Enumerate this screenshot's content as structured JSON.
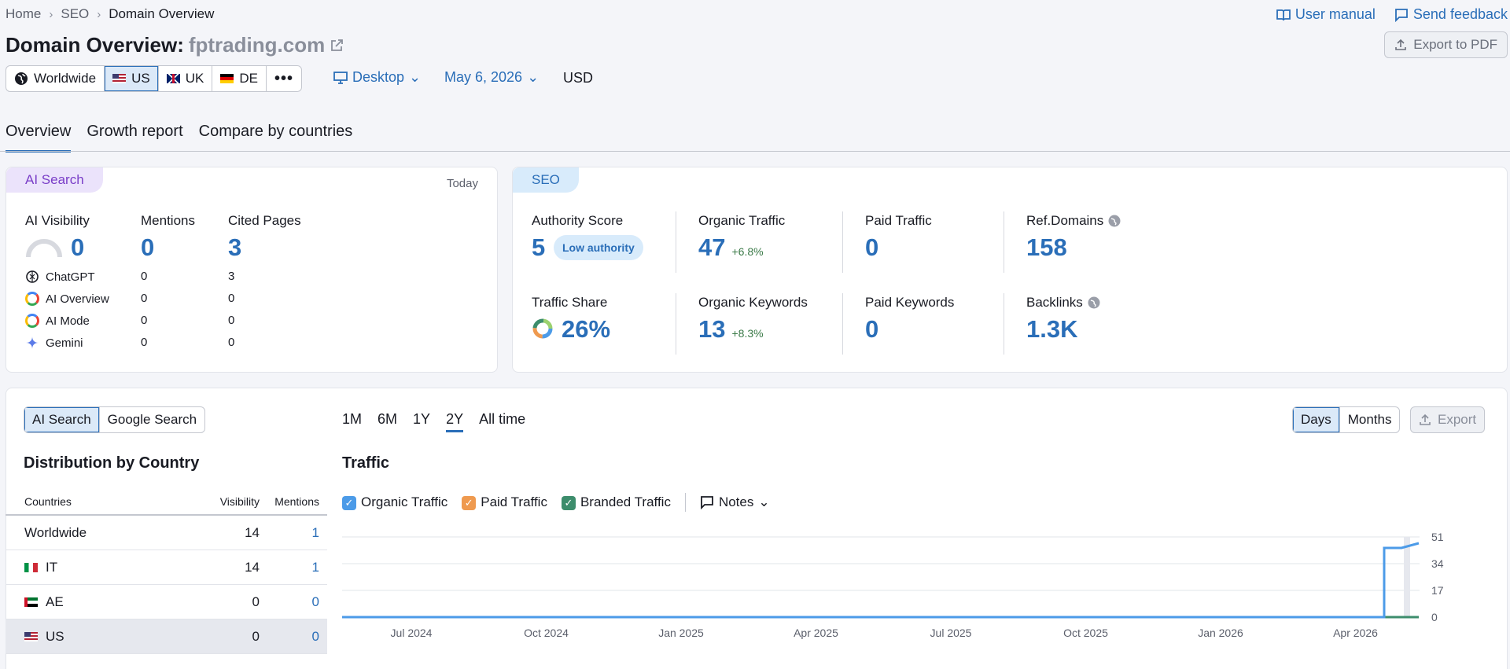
{
  "breadcrumb": [
    "Home",
    "SEO",
    "Domain Overview"
  ],
  "top_links": {
    "manual": "User manual",
    "feedback": "Send feedback"
  },
  "title": {
    "prefix": "Domain Overview:",
    "domain": "fptrading.com"
  },
  "export_pdf": "Export to PDF",
  "databases": [
    {
      "label": "Worldwide",
      "flag": "globe-icon"
    },
    {
      "label": "US",
      "flag": "flag-us"
    },
    {
      "label": "UK",
      "flag": "flag-uk"
    },
    {
      "label": "DE",
      "flag": "flag-de"
    }
  ],
  "device": "Desktop",
  "date": "May 6, 2026",
  "currency": "USD",
  "tabs": [
    "Overview",
    "Growth report",
    "Compare by countries"
  ],
  "ai_card": {
    "pill": "AI Search",
    "period": "Today",
    "visibility_label": "AI Visibility",
    "visibility": "0",
    "mentions_label": "Mentions",
    "mentions": "0",
    "cited_label": "Cited Pages",
    "cited": "3",
    "rows": [
      {
        "name": "ChatGPT",
        "mentions": "0",
        "cited": "3"
      },
      {
        "name": "AI Overview",
        "mentions": "0",
        "cited": "0"
      },
      {
        "name": "AI Mode",
        "mentions": "0",
        "cited": "0"
      },
      {
        "name": "Gemini",
        "mentions": "0",
        "cited": "0"
      }
    ]
  },
  "seo_card": {
    "pill": "SEO",
    "authority_label": "Authority Score",
    "authority": "5",
    "authority_badge": "Low authority",
    "organic_label": "Organic Traffic",
    "organic": "47",
    "organic_delta": "+6.8%",
    "paid_label": "Paid Traffic",
    "paid": "0",
    "ref_label": "Ref.Domains",
    "ref": "158",
    "share_label": "Traffic Share",
    "share": "26%",
    "okw_label": "Organic Keywords",
    "okw": "13",
    "okw_delta": "+8.3%",
    "pkw_label": "Paid Keywords",
    "pkw": "0",
    "backlinks_label": "Backlinks",
    "backlinks": "1.3K"
  },
  "bottom": {
    "search_toggle": [
      "AI Search",
      "Google Search"
    ],
    "dist_title": "Distribution by Country",
    "table_headers": [
      "Countries",
      "Visibility",
      "Mentions"
    ],
    "table_rows": [
      {
        "country": "Worldwide",
        "flag": "",
        "visibility": "14",
        "mentions": "1"
      },
      {
        "country": "IT",
        "flag": "flag-it",
        "visibility": "14",
        "mentions": "1"
      },
      {
        "country": "AE",
        "flag": "flag-ae",
        "visibility": "0",
        "mentions": "0"
      },
      {
        "country": "US",
        "flag": "flag-us",
        "visibility": "0",
        "mentions": "0"
      }
    ],
    "ranges": [
      "1M",
      "6M",
      "1Y",
      "2Y",
      "All time"
    ],
    "granularity": [
      "Days",
      "Months"
    ],
    "export": "Export",
    "traffic_title": "Traffic",
    "legend": [
      "Organic Traffic",
      "Paid Traffic",
      "Branded Traffic"
    ],
    "notes": "Notes",
    "colors": {
      "organic": "#4c9be8",
      "paid": "#ef9a4f",
      "branded": "#3d8d6c"
    }
  },
  "chart_data": {
    "type": "line",
    "title": "Traffic",
    "x_ticks": [
      "Jul 2024",
      "Oct 2024",
      "Jan 2025",
      "Apr 2025",
      "Jul 2025",
      "Oct 2025",
      "Jan 2026",
      "Apr 2026"
    ],
    "y_ticks": [
      0,
      17,
      34,
      51
    ],
    "ylim": [
      0,
      51
    ],
    "series": [
      {
        "name": "Organic Traffic",
        "values": [
          0,
          0,
          0,
          0,
          0,
          0,
          0,
          0,
          44,
          44,
          47
        ]
      },
      {
        "name": "Branded Traffic",
        "values": [
          0,
          0,
          0,
          0,
          0,
          0,
          0,
          0,
          0,
          0,
          0
        ]
      }
    ]
  }
}
